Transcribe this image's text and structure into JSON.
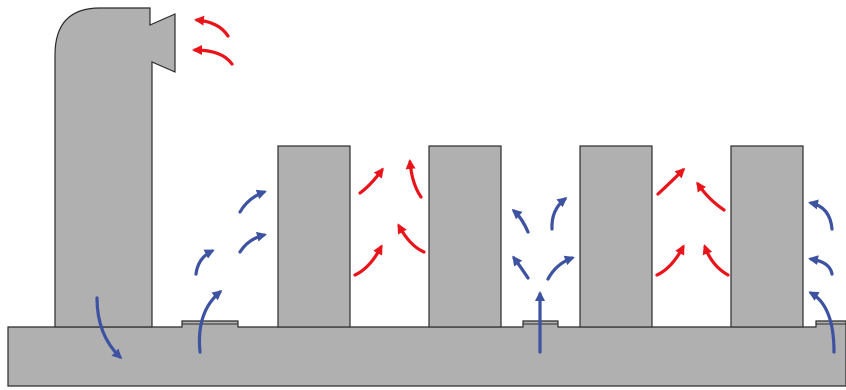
{
  "colors": {
    "structure_fill": "#b0b0b0",
    "structure_stroke": "#2b2b2b",
    "cold_air": "#3d52a1",
    "hot_air": "#e8141a",
    "background": "#ffffff"
  },
  "diagram": {
    "components": [
      "raised-floor",
      "exhaust-hood",
      "server-rack-1",
      "server-rack-2",
      "server-rack-3",
      "server-rack-4",
      "floor-vent-1",
      "floor-vent-2",
      "floor-vent-3"
    ],
    "airflow": {
      "cold_arrow_icon": "cold-air-arrow-icon",
      "hot_arrow_icon": "hot-air-arrow-icon"
    }
  }
}
